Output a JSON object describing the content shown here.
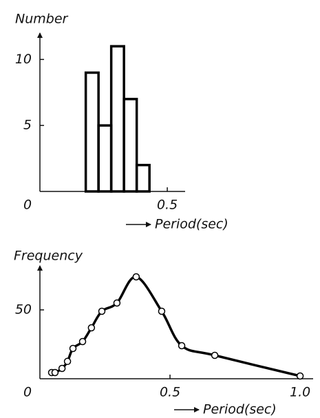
{
  "chart_data": [
    {
      "type": "histogram",
      "ylabel": "Number",
      "xlabel": "Period(sec)",
      "bins": [
        0.18,
        0.23,
        0.28,
        0.33,
        0.38,
        0.43
      ],
      "counts": [
        9,
        5,
        11,
        7,
        2
      ],
      "color": "#000000",
      "xlim": [
        0,
        0.57
      ],
      "xticks": [
        0,
        0.5
      ],
      "ylim": [
        0,
        12
      ],
      "yticks": [
        5,
        10
      ]
    },
    {
      "type": "line",
      "ylabel": "Frequency",
      "xlabel": "Period(sec)",
      "x": [
        0.045,
        0.058,
        0.085,
        0.106,
        0.127,
        0.164,
        0.198,
        0.238,
        0.296,
        0.37,
        0.468,
        0.545,
        0.672,
        1.0
      ],
      "values": [
        4.5,
        4.5,
        7.5,
        12.6,
        22,
        27,
        37,
        49,
        55,
        74,
        49,
        24,
        17,
        2
      ],
      "color": "#000000",
      "xlim": [
        0,
        1.05
      ],
      "xticks": [
        0,
        0.5,
        {
          "value": 1,
          "label": "1.0"
        }
      ],
      "ylim": [
        0,
        82
      ],
      "yticks": [
        50
      ]
    }
  ]
}
